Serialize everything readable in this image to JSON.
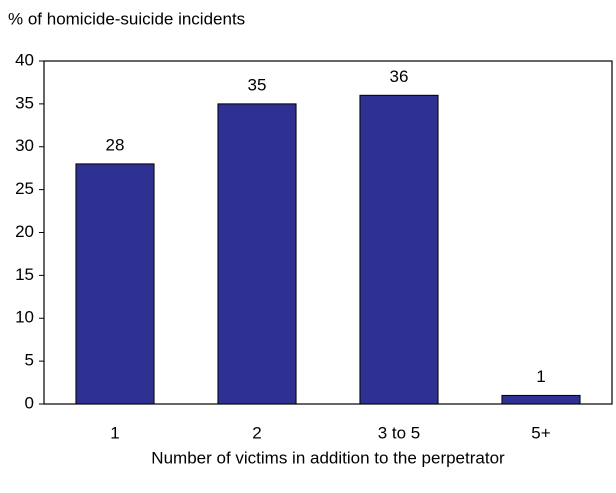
{
  "chart_data": {
    "type": "bar",
    "y_axis_label": "% of homicide-suicide incidents",
    "x_axis_label": "Number of victims in addition to the perpetrator",
    "categories": [
      "1",
      "2",
      "3 to 5",
      "5+"
    ],
    "values": [
      28,
      35,
      36,
      1
    ],
    "color": "#2e3192",
    "ylim": [
      0,
      40
    ],
    "yticks": [
      0,
      5,
      10,
      15,
      20,
      25,
      30,
      35,
      40
    ],
    "grid": false
  }
}
